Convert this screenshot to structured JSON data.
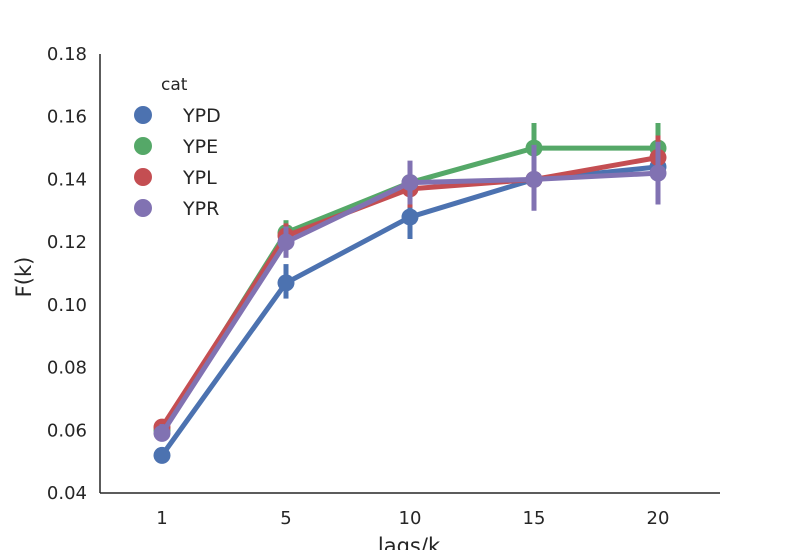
{
  "chart_data": {
    "type": "line",
    "title": "",
    "xlabel": "lags/k",
    "ylabel": "F(k)",
    "categories": [
      "1",
      "5",
      "10",
      "15",
      "20"
    ],
    "ylim": [
      0.04,
      0.18
    ],
    "yticks": [
      "0.04",
      "0.06",
      "0.08",
      "0.10",
      "0.12",
      "0.14",
      "0.16",
      "0.18"
    ],
    "grid": false,
    "legend": {
      "title": "cat",
      "placement": "top-left"
    },
    "series": [
      {
        "name": "YPD",
        "color": "#4c72b0",
        "values": [
          0.052,
          0.107,
          0.128,
          0.14,
          0.144
        ],
        "ci_low": [
          0.051,
          0.102,
          0.121,
          0.133,
          0.137
        ],
        "ci_high": [
          0.054,
          0.113,
          0.134,
          0.148,
          0.151
        ]
      },
      {
        "name": "YPE",
        "color": "#55a868",
        "values": [
          0.06,
          0.123,
          0.139,
          0.15,
          0.15
        ],
        "ci_low": [
          0.059,
          0.119,
          0.133,
          0.141,
          0.141
        ],
        "ci_high": [
          0.062,
          0.127,
          0.145,
          0.158,
          0.158
        ]
      },
      {
        "name": "YPL",
        "color": "#c44e52",
        "values": [
          0.061,
          0.122,
          0.137,
          0.14,
          0.147
        ],
        "ci_low": [
          0.06,
          0.118,
          0.131,
          0.134,
          0.14
        ],
        "ci_high": [
          0.063,
          0.126,
          0.143,
          0.146,
          0.154
        ]
      },
      {
        "name": "YPR",
        "color": "#8172b2",
        "values": [
          0.059,
          0.12,
          0.139,
          0.14,
          0.142
        ],
        "ci_low": [
          0.057,
          0.115,
          0.132,
          0.13,
          0.132
        ],
        "ci_high": [
          0.062,
          0.125,
          0.146,
          0.151,
          0.152
        ]
      }
    ]
  }
}
